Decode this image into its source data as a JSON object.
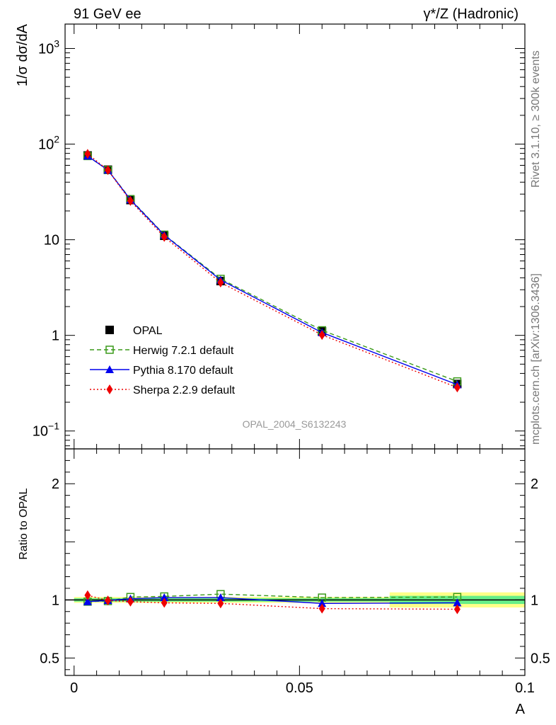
{
  "header": {
    "left": "91 GeV ee",
    "right": "γ*/Z (Hadronic)"
  },
  "side_labels": {
    "top": "Rivet 3.1.10, ≥ 300k events",
    "bottom": "mcplots.cern.ch [arXiv:1306.3436]"
  },
  "watermark": "OPAL_2004_S6132243",
  "chart_data": [
    {
      "type": "line",
      "panel": "main",
      "ylabel": "1/σ dσ/dA",
      "yscale": "log",
      "ylim": [
        0.065,
        1800
      ],
      "xlim": [
        -0.002,
        0.1
      ],
      "yticks": [
        {
          "value": 0.1,
          "base": "10",
          "exp": "−1"
        },
        {
          "value": 1,
          "label": "1"
        },
        {
          "value": 10,
          "label": "10"
        },
        {
          "value": 100,
          "base": "10",
          "exp": "2"
        },
        {
          "value": 1000,
          "base": "10",
          "exp": "3"
        }
      ],
      "x": [
        0.003,
        0.0075,
        0.0125,
        0.02,
        0.0325,
        0.055,
        0.085
      ],
      "series": [
        {
          "name": "OPAL",
          "style": "data",
          "color": "#000000",
          "marker": "square-filled",
          "values": [
            76,
            54,
            26,
            11,
            3.7,
            1.1,
            0.31
          ]
        },
        {
          "name": "Herwig 7.2.1 default",
          "style": "dashed",
          "color": "#3a9a1a",
          "marker": "square-open",
          "values": [
            75,
            53.5,
            26.6,
            11.3,
            3.9,
            1.13,
            0.33
          ]
        },
        {
          "name": "Pythia 8.170 default",
          "style": "solid",
          "color": "#0000ee",
          "marker": "triangle-filled",
          "values": [
            75,
            53.5,
            26.2,
            11.2,
            3.8,
            1.07,
            0.305
          ]
        },
        {
          "name": "Sherpa 2.2.9 default",
          "style": "dotted",
          "color": "#ee0000",
          "marker": "diamond-filled",
          "values": [
            79,
            53.5,
            25.5,
            10.7,
            3.57,
            1.01,
            0.285
          ]
        }
      ],
      "legend": "lower-left"
    },
    {
      "type": "line",
      "panel": "ratio",
      "ylabel": "Ratio to OPAL",
      "xlabel": "A",
      "ylim": [
        0.35,
        2.3
      ],
      "xlim": [
        -0.002,
        0.1
      ],
      "xticks": [
        {
          "value": 0,
          "label": "0"
        },
        {
          "value": 0.05,
          "label": "0.05"
        },
        {
          "value": 0.1,
          "label": "0.1"
        }
      ],
      "yticks": [
        {
          "value": 0.5,
          "label": "0.5"
        },
        {
          "value": 1,
          "label": "1"
        },
        {
          "value": 2,
          "label": "2"
        }
      ],
      "bands": [
        {
          "x0": 0.0,
          "x1": 0.07,
          "yellow": [
            0.975,
            1.025
          ],
          "green": [
            0.985,
            1.015
          ]
        },
        {
          "x0": 0.07,
          "x1": 0.1,
          "yellow": [
            0.935,
            1.065
          ],
          "green": [
            0.965,
            1.035
          ]
        }
      ],
      "x": [
        0.003,
        0.0075,
        0.0125,
        0.02,
        0.0325,
        0.055,
        0.085
      ],
      "series": [
        {
          "name": "Herwig 7.2.1 default",
          "style": "dashed",
          "color": "#3a9a1a",
          "marker": "square-open",
          "values": [
            0.985,
            0.99,
            1.025,
            1.03,
            1.05,
            1.02,
            1.025
          ]
        },
        {
          "name": "Pythia 8.170 default",
          "style": "solid",
          "color": "#0000ee",
          "marker": "triangle-filled",
          "values": [
            0.985,
            0.995,
            1.01,
            1.02,
            1.02,
            0.97,
            0.975
          ]
        },
        {
          "name": "Sherpa 2.2.9 default",
          "style": "dotted",
          "color": "#ee0000",
          "marker": "diamond-filled",
          "values": [
            1.04,
            0.995,
            0.985,
            0.975,
            0.97,
            0.925,
            0.92
          ]
        }
      ]
    }
  ]
}
